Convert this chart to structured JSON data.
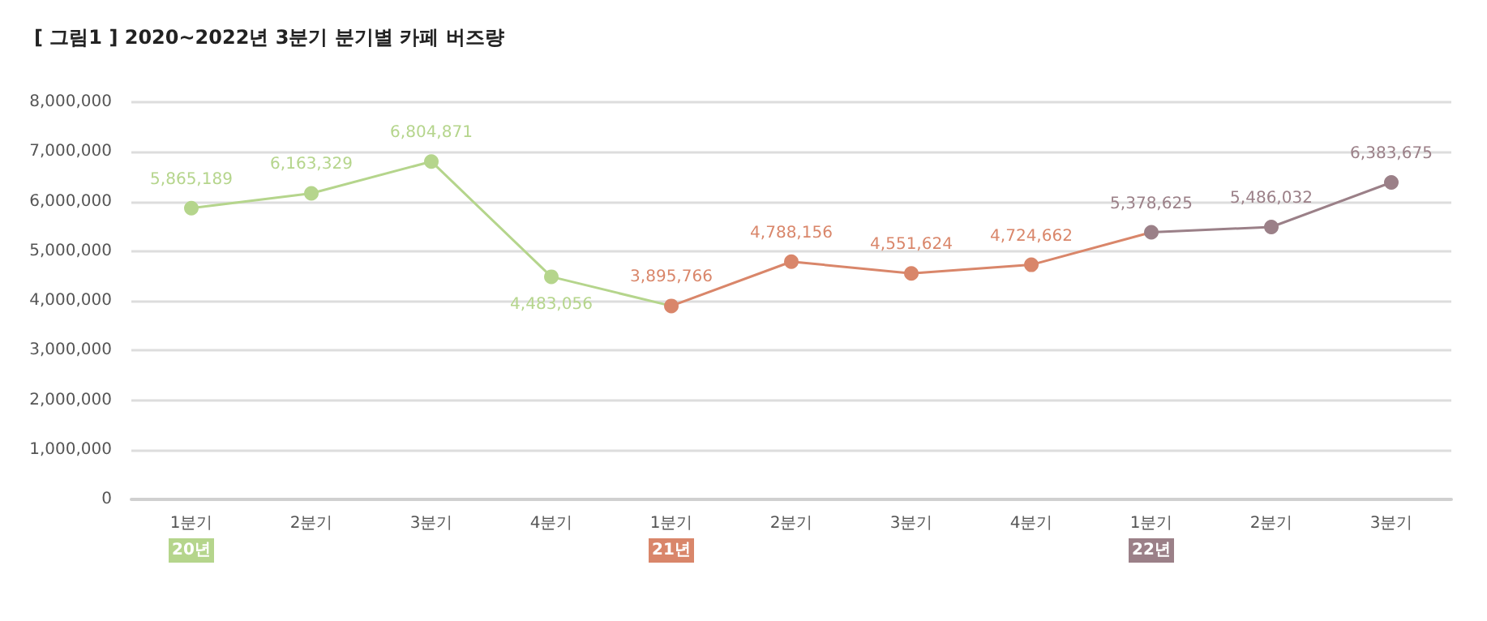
{
  "chart_data": {
    "type": "line",
    "title": "[ 그림1 ] 2020~2022년 3분기 분기별 카페 버즈량",
    "categories": [
      "1분기",
      "2분기",
      "3분기",
      "4분기",
      "1분기",
      "2분기",
      "3분기",
      "4분기",
      "1분기",
      "2분기",
      "3분기"
    ],
    "series": [
      {
        "color": "#b5d58c",
        "values": [
          5865189,
          6163329,
          6804871,
          4483056,
          3895766,
          null,
          null,
          null,
          null,
          null,
          null
        ],
        "value_labels": [
          "5,865,189",
          "6,163,329",
          "6,804,871",
          "4,483,056",
          null,
          null,
          null,
          null,
          null,
          null,
          null
        ]
      },
      {
        "color": "#d9866a",
        "values": [
          null,
          null,
          null,
          null,
          3895766,
          4788156,
          4551624,
          4724662,
          5378625,
          null,
          null
        ],
        "value_labels": [
          null,
          null,
          null,
          null,
          "3,895,766",
          "4,788,156",
          "4,551,624",
          "4,724,662",
          null,
          null,
          null
        ]
      },
      {
        "color": "#9b8088",
        "values": [
          null,
          null,
          null,
          null,
          null,
          null,
          null,
          null,
          5378625,
          5486032,
          6383675
        ],
        "value_labels": [
          null,
          null,
          null,
          null,
          null,
          null,
          null,
          null,
          "5,378,625",
          "5,486,032",
          "6,383,675"
        ]
      }
    ],
    "annotations": [
      "20년",
      "21년",
      "22년"
    ],
    "ylim": [
      0,
      8000000
    ],
    "yticks": [
      {
        "value": 0,
        "label": "0"
      },
      {
        "value": 1000000,
        "label": "1,000,000"
      },
      {
        "value": 2000000,
        "label": "2,000,000"
      },
      {
        "value": 3000000,
        "label": "3,000,000"
      },
      {
        "value": 4000000,
        "label": "4,000,000"
      },
      {
        "value": 5000000,
        "label": "5,000,000"
      },
      {
        "value": 6000000,
        "label": "6,000,000"
      },
      {
        "value": 7000000,
        "label": "7,000,000"
      },
      {
        "value": 8000000,
        "label": "8,000,000"
      }
    ],
    "grid": "y",
    "marker": "circle"
  }
}
